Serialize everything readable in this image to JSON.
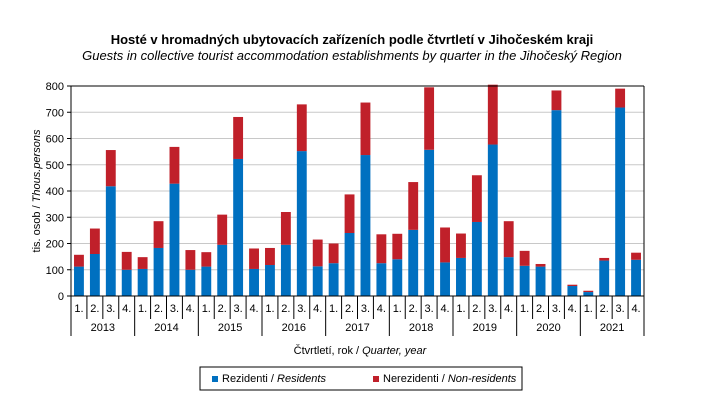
{
  "chart_data": {
    "type": "bar",
    "stacked": true,
    "title": "Hosté v hromadných ubytovacích zařízeních podle čtvrtletí v Jihočeském kraji",
    "subtitle": "Guests in collective tourist accommodation establishments by quarter in the Jihočeský Region",
    "ylabel_main": "tis. osob / ",
    "ylabel_italic": "Thous.persons",
    "xlabel_main": "Čtvrtletí, rok / ",
    "xlabel_italic": "Quarter, year",
    "ylim": [
      0,
      800
    ],
    "yticks": [
      0,
      100,
      200,
      300,
      400,
      500,
      600,
      700,
      800
    ],
    "grid": true,
    "quarters": [
      "1.",
      "2.",
      "3.",
      "4."
    ],
    "years": [
      "2013",
      "2014",
      "2015",
      "2016",
      "2017",
      "2018",
      "2019",
      "2020",
      "2021"
    ],
    "series": [
      {
        "name_main": "Rezidenti / ",
        "name_italic": "Residents",
        "color": "#0070c0",
        "values": [
          112,
          160,
          418,
          100,
          103,
          183,
          428,
          100,
          112,
          195,
          522,
          103,
          118,
          195,
          552,
          113,
          125,
          240,
          537,
          125,
          140,
          252,
          557,
          128,
          145,
          282,
          577,
          148,
          115,
          112,
          708,
          38,
          15,
          135,
          718,
          138
        ]
      },
      {
        "name_main": "Nerezidenti / ",
        "name_italic": "Non-residents",
        "color": "#c0202a",
        "values": [
          45,
          97,
          138,
          68,
          45,
          102,
          140,
          75,
          55,
          115,
          160,
          78,
          65,
          125,
          178,
          102,
          75,
          147,
          200,
          110,
          97,
          182,
          238,
          133,
          93,
          178,
          228,
          137,
          57,
          10,
          75,
          5,
          5,
          10,
          72,
          27
        ]
      }
    ]
  }
}
